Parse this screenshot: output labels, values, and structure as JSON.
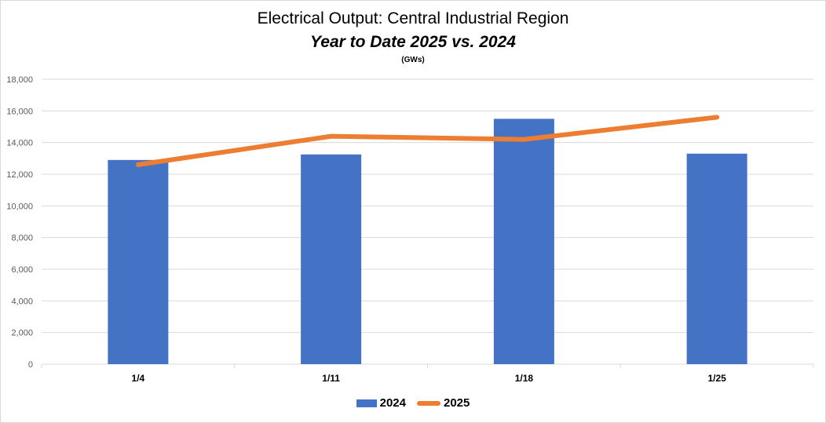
{
  "chart_data": {
    "type": "bar",
    "title": "Electrical Output:  Central Industrial Region",
    "subtitle": "Year to Date 2025 vs. 2024",
    "unit_label": "(GWs)",
    "categories": [
      "1/4",
      "1/11",
      "1/18",
      "1/25"
    ],
    "series": [
      {
        "name": "2024",
        "type": "bar",
        "color": "#4472c4",
        "values": [
          12900,
          13250,
          15500,
          13300
        ]
      },
      {
        "name": "2025",
        "type": "line",
        "color": "#ed7d31",
        "values": [
          12600,
          14400,
          14200,
          15600
        ]
      }
    ],
    "ylim": [
      0,
      18000
    ],
    "yticks": [
      "0",
      "2,000",
      "4,000",
      "6,000",
      "8,000",
      "10,000",
      "12,000",
      "14,000",
      "16,000",
      "18,000"
    ],
    "grid": true,
    "legend_position": "bottom"
  }
}
